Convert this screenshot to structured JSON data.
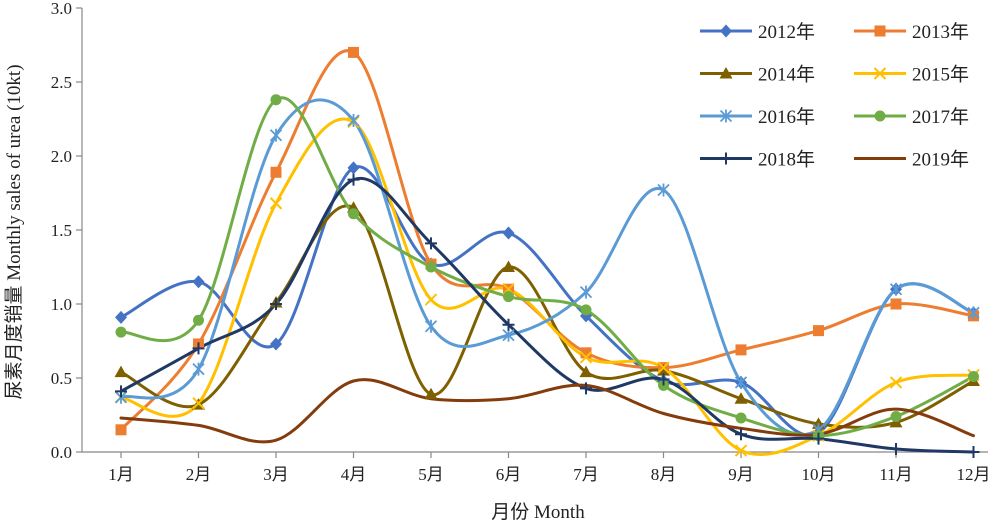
{
  "chart_data": {
    "type": "line",
    "smooth": true,
    "categories": [
      "1月",
      "2月",
      "3月",
      "4月",
      "5月",
      "6月",
      "7月",
      "8月",
      "9月",
      "10月",
      "11月",
      "12月"
    ],
    "ylim": [
      0,
      3.0
    ],
    "yticks": [
      "0.0",
      "0.5",
      "1.0",
      "1.5",
      "2.0",
      "2.5",
      "3.0"
    ],
    "xlabel": "月份 Month",
    "ylabel": "尿素月度销量 Monthly sales of urea (10kt)",
    "grid": false,
    "legend": "top-right",
    "series": [
      {
        "name": "2012年",
        "color": "#4472C4",
        "marker": "diamond",
        "values": [
          0.91,
          1.15,
          0.73,
          1.92,
          1.27,
          1.48,
          0.92,
          0.48,
          0.47,
          0.13,
          1.1,
          0.94
        ]
      },
      {
        "name": "2013年",
        "color": "#ED7D31",
        "marker": "square",
        "values": [
          0.15,
          0.73,
          1.89,
          2.7,
          1.27,
          1.1,
          0.67,
          0.57,
          0.69,
          0.82,
          1.0,
          0.92
        ]
      },
      {
        "name": "2014年",
        "color": "#7F6000",
        "marker": "triangle",
        "values": [
          0.54,
          0.32,
          1.01,
          1.65,
          0.39,
          1.25,
          0.54,
          0.55,
          0.36,
          0.19,
          0.2,
          0.48
        ]
      },
      {
        "name": "2015年",
        "color": "#FFC000",
        "marker": "x",
        "values": [
          0.37,
          0.33,
          1.68,
          2.23,
          1.03,
          1.1,
          0.64,
          0.57,
          0.01,
          0.11,
          0.47,
          0.52
        ]
      },
      {
        "name": "2016年",
        "color": "#5B9BD5",
        "marker": "star",
        "values": [
          0.37,
          0.56,
          2.14,
          2.24,
          0.85,
          0.79,
          1.08,
          1.77,
          0.47,
          0.15,
          1.1,
          0.94
        ]
      },
      {
        "name": "2017年",
        "color": "#70AD47",
        "marker": "circle",
        "values": [
          0.81,
          0.89,
          2.38,
          1.61,
          1.25,
          1.05,
          0.96,
          0.45,
          0.23,
          0.11,
          0.24,
          0.51
        ]
      },
      {
        "name": "2018年",
        "color": "#1F3864",
        "marker": "plus",
        "values": [
          0.41,
          0.7,
          1.0,
          1.84,
          1.41,
          0.86,
          0.43,
          0.49,
          0.12,
          0.09,
          0.02,
          0.0
        ]
      },
      {
        "name": "2019年",
        "color": "#843C0C",
        "marker": "none",
        "values": [
          0.23,
          0.18,
          0.08,
          0.48,
          0.36,
          0.36,
          0.45,
          0.26,
          0.16,
          0.12,
          0.29,
          0.11
        ]
      }
    ]
  }
}
